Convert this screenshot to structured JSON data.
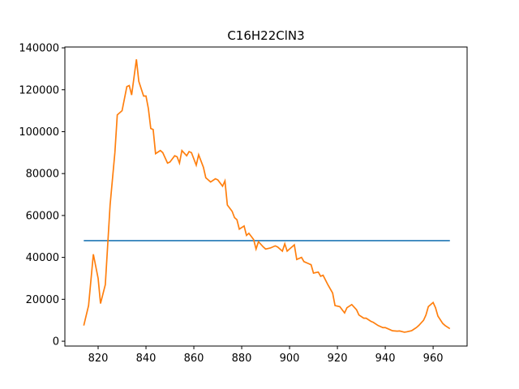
{
  "chart_data": {
    "type": "line",
    "title": "C16H22ClN3",
    "series": [
      {
        "color": "#1f77b4",
        "x": [
          814,
          967
        ],
        "values": [
          48000,
          48000
        ]
      },
      {
        "color": "#ff7f0e",
        "x": [
          814,
          816,
          818,
          820,
          821,
          823,
          825,
          827,
          828,
          830,
          832,
          833,
          834,
          836,
          837,
          839,
          840,
          841,
          842,
          843,
          844,
          846,
          847,
          849,
          850,
          852,
          853,
          854,
          855,
          857,
          858,
          859,
          861,
          862,
          864,
          865,
          867,
          869,
          870,
          872,
          873,
          874,
          876,
          877,
          878,
          879,
          881,
          882,
          883,
          885,
          886,
          887,
          889,
          890,
          892,
          894,
          895,
          897,
          898,
          899,
          900,
          902,
          903,
          905,
          906,
          908,
          909,
          910,
          912,
          913,
          914,
          916,
          918,
          919,
          921,
          923,
          924,
          926,
          928,
          929,
          931,
          932,
          934,
          935,
          937,
          939,
          940,
          942,
          943,
          945,
          946,
          948,
          949,
          951,
          953,
          954,
          956,
          957,
          958,
          960,
          961,
          962,
          964,
          965,
          967
        ],
        "values": [
          7500,
          17000,
          41500,
          30000,
          18000,
          27000,
          65000,
          90000,
          108000,
          110000,
          121500,
          122000,
          117500,
          134500,
          124000,
          117000,
          117000,
          111000,
          101500,
          101000,
          89500,
          91000,
          90000,
          85000,
          85500,
          88500,
          88000,
          85000,
          91000,
          88500,
          90500,
          90000,
          84000,
          89000,
          83000,
          78000,
          76000,
          77500,
          77000,
          74000,
          76500,
          65000,
          62000,
          59000,
          58000,
          53500,
          55000,
          50500,
          51500,
          48500,
          44000,
          47500,
          45000,
          44000,
          44500,
          45500,
          45000,
          43000,
          46500,
          43000,
          44000,
          46000,
          39000,
          40000,
          38000,
          37000,
          36500,
          32500,
          33000,
          31000,
          31500,
          27000,
          23000,
          17000,
          16500,
          13500,
          16000,
          17500,
          15000,
          12500,
          11000,
          11000,
          9500,
          9000,
          7500,
          6500,
          6500,
          5500,
          5000,
          4800,
          4900,
          4300,
          4500,
          5000,
          6500,
          7500,
          10000,
          12500,
          16500,
          18500,
          16000,
          12000,
          8500,
          7500,
          6000
        ]
      }
    ],
    "xlim": [
      806.1,
      974.2
    ],
    "xticks": [
      820,
      840,
      860,
      880,
      900,
      920,
      940,
      960
    ],
    "ylim": [
      -2300,
      140400
    ],
    "yticks": [
      0,
      20000,
      40000,
      60000,
      80000,
      100000,
      120000,
      140000
    ]
  }
}
